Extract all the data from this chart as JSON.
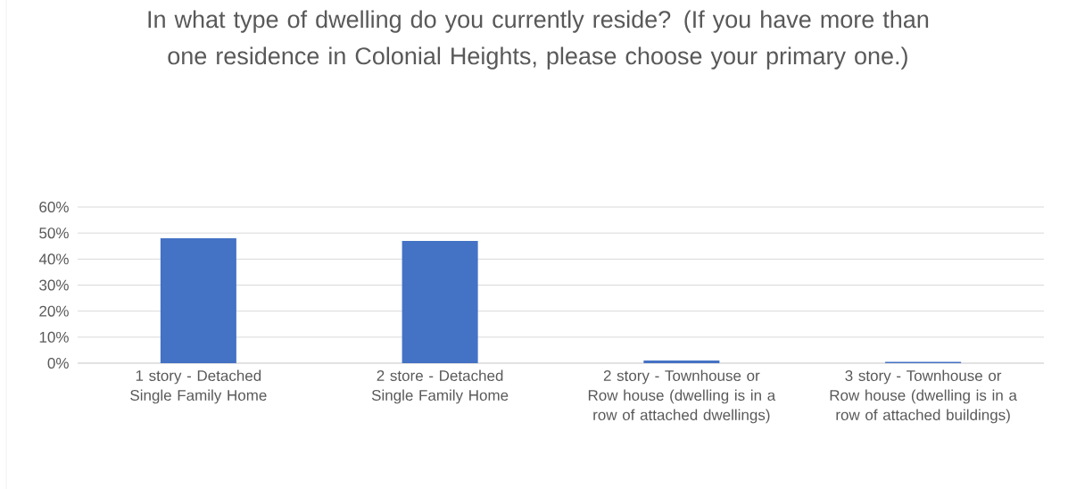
{
  "chart_data": {
    "type": "bar",
    "title": "In what type of dwelling do you currently reside? (If you have more than one residence in Colonial Heights, please choose your primary one.)",
    "categories": [
      "1 story - Detached Single Family Home",
      "2 store - Detached Single Family Home",
      "2 story - Townhouse or Row house (dwelling is in a row of attached dwellings)",
      "3 story - Townhouse or Row house (dwelling is in a row of attached buildings)"
    ],
    "values": [
      48,
      47,
      1,
      0.5
    ],
    "color": "#4472c4",
    "ylim": [
      0,
      60
    ],
    "yticks": [
      {
        "value": 0,
        "label": "0%"
      },
      {
        "value": 10,
        "label": "10%"
      },
      {
        "value": 20,
        "label": "20%"
      },
      {
        "value": 30,
        "label": "30%"
      },
      {
        "value": 40,
        "label": "40%"
      },
      {
        "value": 50,
        "label": "50%"
      },
      {
        "value": 60,
        "label": "60%"
      }
    ],
    "grid": "y"
  }
}
